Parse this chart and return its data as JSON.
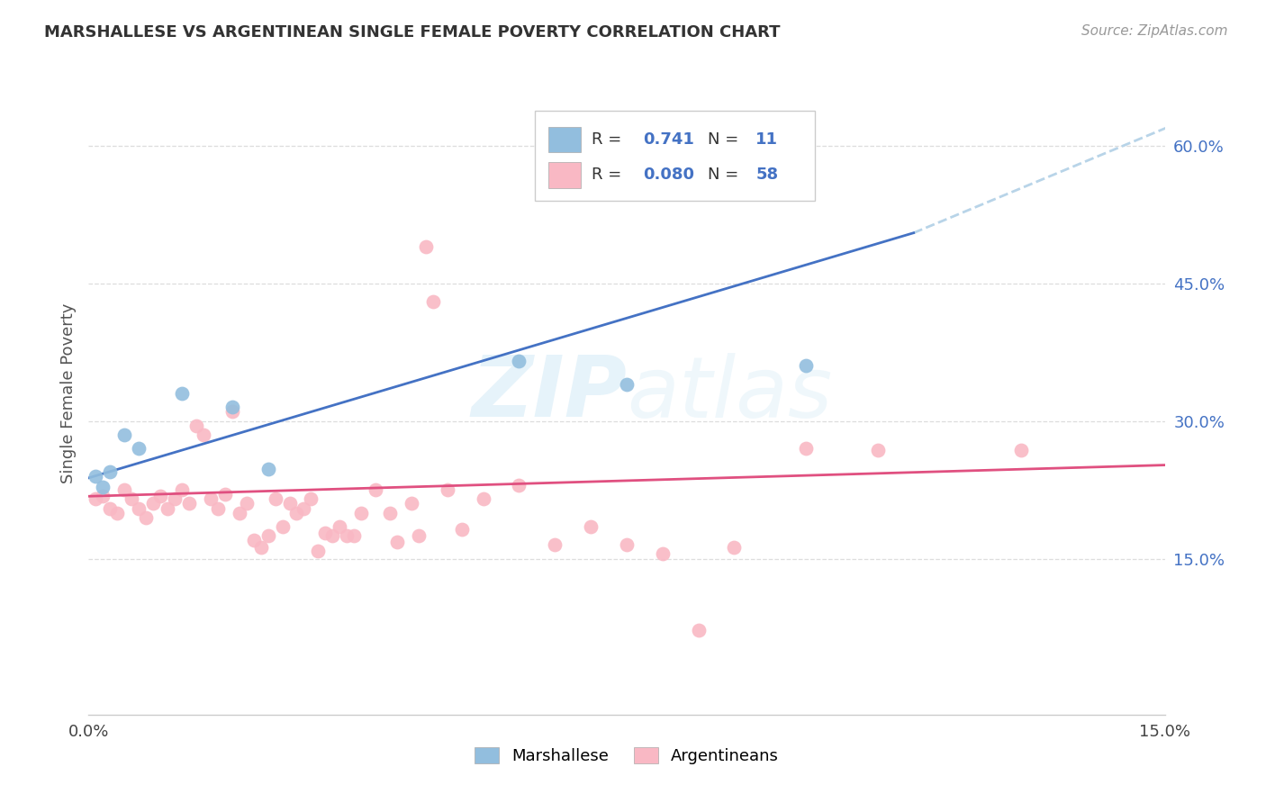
{
  "title": "MARSHALLESE VS ARGENTINEAN SINGLE FEMALE POVERTY CORRELATION CHART",
  "source": "Source: ZipAtlas.com",
  "ylabel": "Single Female Poverty",
  "xlim": [
    0.0,
    0.15
  ],
  "ylim": [
    -0.02,
    0.68
  ],
  "right_yticks": [
    0.15,
    0.3,
    0.45,
    0.6
  ],
  "right_ylabels": [
    "15.0%",
    "30.0%",
    "45.0%",
    "60.0%"
  ],
  "xtick_positions": [
    0.0,
    0.03,
    0.06,
    0.09,
    0.12,
    0.15
  ],
  "xtick_labels": [
    "0.0%",
    "",
    "",
    "",
    "",
    "15.0%"
  ],
  "blue_R": "0.741",
  "blue_N": "11",
  "pink_R": "0.080",
  "pink_N": "58",
  "blue_dot_color": "#92bede",
  "pink_dot_color": "#f9b8c4",
  "blue_line_color": "#4472c4",
  "pink_line_color": "#e05080",
  "dashed_line_color": "#b8d4e8",
  "grid_color": "#dddddd",
  "watermark_color": "#dceef8",
  "legend_blue_label": "Marshallese",
  "legend_pink_label": "Argentineans",
  "blue_line_x": [
    0.0,
    0.115
  ],
  "blue_line_y": [
    0.238,
    0.505
  ],
  "dashed_line_x": [
    0.115,
    0.155
  ],
  "dashed_line_y": [
    0.505,
    0.635
  ],
  "pink_line_x": [
    0.0,
    0.15
  ],
  "pink_line_y": [
    0.218,
    0.252
  ],
  "marshallese_x": [
    0.001,
    0.002,
    0.003,
    0.005,
    0.007,
    0.013,
    0.02,
    0.025,
    0.06,
    0.075,
    0.1
  ],
  "marshallese_y": [
    0.24,
    0.228,
    0.245,
    0.285,
    0.27,
    0.33,
    0.315,
    0.248,
    0.365,
    0.34,
    0.36
  ],
  "argentinean_x": [
    0.001,
    0.002,
    0.003,
    0.004,
    0.005,
    0.006,
    0.007,
    0.008,
    0.009,
    0.01,
    0.011,
    0.012,
    0.013,
    0.014,
    0.015,
    0.016,
    0.017,
    0.018,
    0.019,
    0.02,
    0.021,
    0.022,
    0.023,
    0.024,
    0.025,
    0.026,
    0.027,
    0.028,
    0.029,
    0.03,
    0.031,
    0.032,
    0.033,
    0.034,
    0.035,
    0.036,
    0.037,
    0.038,
    0.04,
    0.042,
    0.043,
    0.045,
    0.046,
    0.047,
    0.048,
    0.05,
    0.052,
    0.055,
    0.06,
    0.065,
    0.07,
    0.075,
    0.08,
    0.085,
    0.09,
    0.1,
    0.11,
    0.13
  ],
  "argentinean_y": [
    0.215,
    0.218,
    0.205,
    0.2,
    0.225,
    0.215,
    0.205,
    0.195,
    0.21,
    0.218,
    0.205,
    0.215,
    0.225,
    0.21,
    0.295,
    0.285,
    0.215,
    0.205,
    0.22,
    0.31,
    0.2,
    0.21,
    0.17,
    0.162,
    0.175,
    0.215,
    0.185,
    0.21,
    0.2,
    0.205,
    0.215,
    0.158,
    0.178,
    0.175,
    0.185,
    0.175,
    0.175,
    0.2,
    0.225,
    0.2,
    0.168,
    0.21,
    0.175,
    0.49,
    0.43,
    0.225,
    0.182,
    0.215,
    0.23,
    0.165,
    0.185,
    0.165,
    0.155,
    0.072,
    0.162,
    0.27,
    0.268,
    0.268
  ]
}
